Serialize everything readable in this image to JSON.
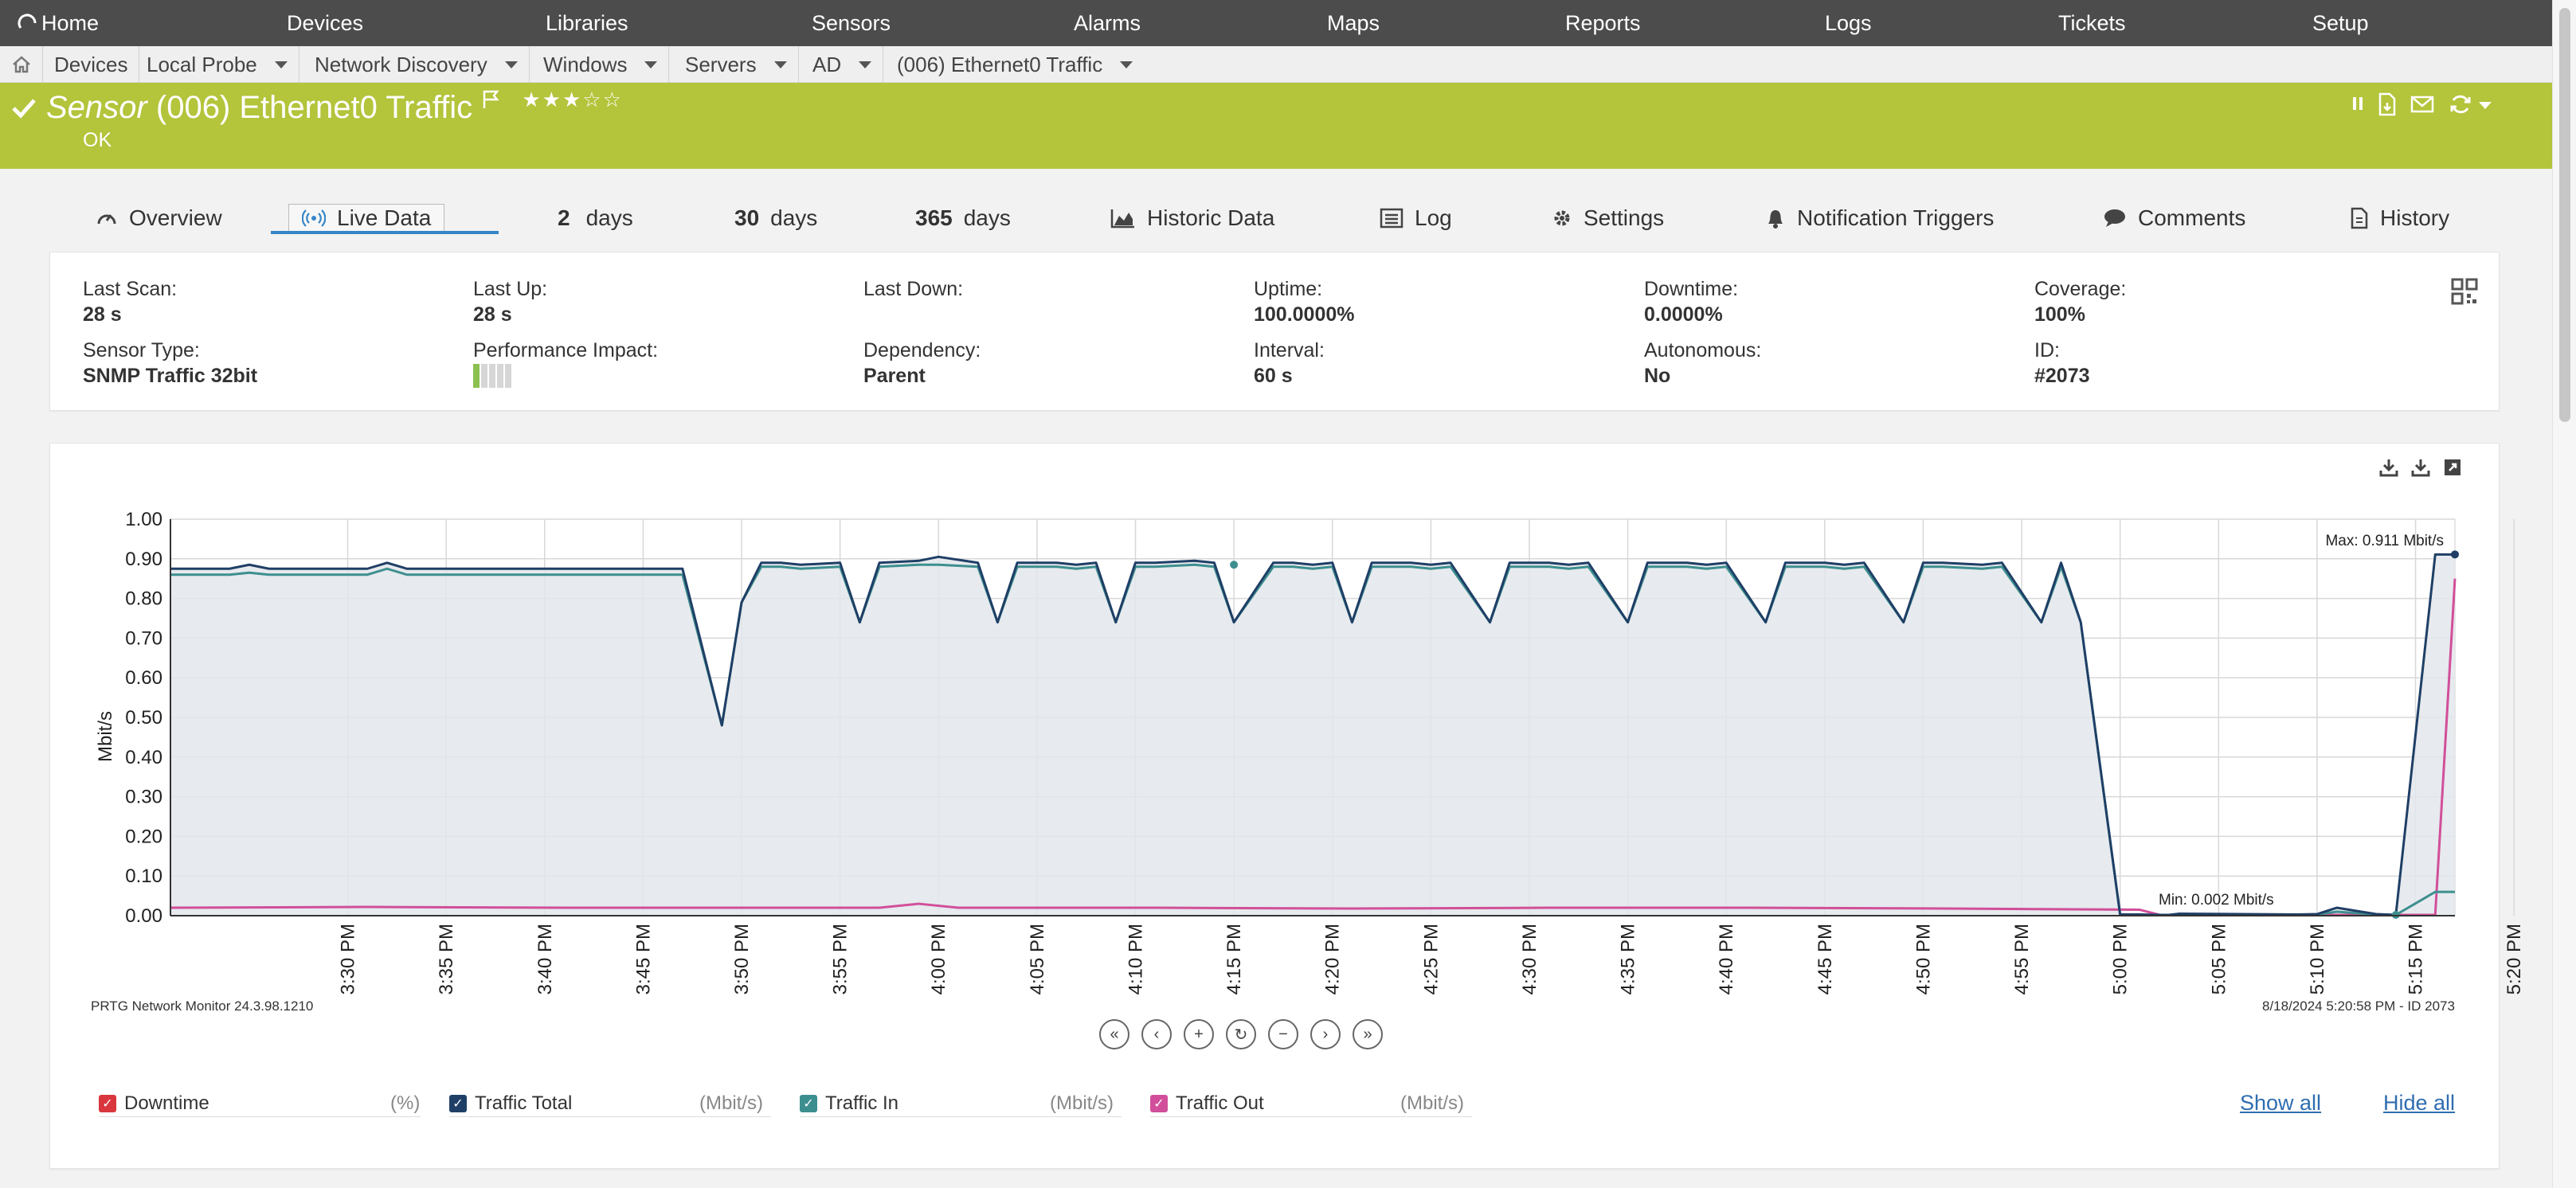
{
  "nav": {
    "items": [
      "Home",
      "Devices",
      "Libraries",
      "Sensors",
      "Alarms",
      "Maps",
      "Reports",
      "Logs",
      "Tickets",
      "Setup"
    ]
  },
  "breadcrumb": {
    "items": [
      "Devices",
      "Local Probe",
      "Network Discovery",
      "Windows",
      "Servers",
      "AD",
      "(006) Ethernet0 Traffic"
    ]
  },
  "sensor": {
    "kind": "Sensor",
    "name": "(006) Ethernet0 Traffic",
    "status": "OK",
    "stars": "★★★☆☆",
    "color": "#b4c43b"
  },
  "tabs": {
    "overview": "Overview",
    "live": "Live Data",
    "d2_num": "2",
    "d2_unit": "days",
    "d30_num": "30",
    "d30_unit": "days",
    "d365_num": "365",
    "d365_unit": "days",
    "historic": "Historic Data",
    "log": "Log",
    "settings": "Settings",
    "triggers": "Notification Triggers",
    "comments": "Comments",
    "history": "History"
  },
  "info": {
    "last_scan_label": "Last Scan:",
    "last_scan": "28 s",
    "last_up_label": "Last Up:",
    "last_up": "28 s",
    "last_down_label": "Last Down:",
    "last_down": "",
    "uptime_label": "Uptime:",
    "uptime": "100.0000%",
    "downtime_label": "Downtime:",
    "downtime": "0.0000%",
    "coverage_label": "Coverage:",
    "coverage": "100%",
    "sensor_type_label": "Sensor Type:",
    "sensor_type": "SNMP Traffic 32bit",
    "perf_label": "Performance Impact:",
    "perf_level": 0.2,
    "dependency_label": "Dependency:",
    "dependency": "Parent",
    "interval_label": "Interval:",
    "interval": "60 s",
    "autonomous_label": "Autonomous:",
    "autonomous": "No",
    "id_label": "ID:",
    "id": "#2073"
  },
  "chart_footer": {
    "left": "PRTG Network Monitor 24.3.98.1210",
    "right": "8/18/2024 5:20:58 PM - ID 2073"
  },
  "legend": {
    "downtime": "Downtime",
    "downtime_unit": "(%)",
    "total": "Traffic Total",
    "total_unit": "(Mbit/s)",
    "in": "Traffic In",
    "in_unit": "(Mbit/s)",
    "out": "Traffic Out",
    "out_unit": "(Mbit/s)",
    "show_all": "Show all",
    "hide_all": "Hide all"
  },
  "chart_data": {
    "type": "line",
    "ylabel": "Mbit/s",
    "ylim": [
      0,
      1.0
    ],
    "yticks": [
      "1.00",
      "0.90",
      "0.80",
      "0.70",
      "0.60",
      "0.50",
      "0.40",
      "0.30",
      "0.20",
      "0.10",
      "0.00"
    ],
    "xlim": [
      0,
      116
    ],
    "xticks": [
      "3:30 PM",
      "3:35 PM",
      "3:40 PM",
      "3:45 PM",
      "3:50 PM",
      "3:55 PM",
      "4:00 PM",
      "4:05 PM",
      "4:10 PM",
      "4:15 PM",
      "4:20 PM",
      "4:25 PM",
      "4:30 PM",
      "4:35 PM",
      "4:40 PM",
      "4:45 PM",
      "4:50 PM",
      "4:55 PM",
      "5:00 PM",
      "5:05 PM",
      "5:10 PM",
      "5:15 PM",
      "5:20 PM"
    ],
    "xtick_minutes": [
      9,
      14,
      19,
      24,
      29,
      34,
      39,
      44,
      49,
      54,
      59,
      64,
      69,
      74,
      79,
      84,
      89,
      94,
      99,
      104,
      109,
      114,
      119
    ],
    "grid": true,
    "max_label": "Max: 0.911 Mbit/s",
    "min_label": "Min: 0.002 Mbit/s",
    "colors": {
      "total": "#1f3f66",
      "in": "#3d8f8f",
      "out": "#d14f9a",
      "downtime": "#d9363e",
      "fill": "#e3e6eb"
    },
    "series": [
      {
        "name": "Traffic Total",
        "x": [
          0,
          3,
          4,
          5,
          10,
          11,
          12,
          26,
          28,
          29,
          30,
          31,
          32,
          34,
          35,
          36,
          38,
          39,
          41,
          42,
          43,
          45,
          46,
          47,
          48,
          49,
          50,
          52,
          53,
          54,
          56,
          57,
          58,
          59,
          60,
          61,
          63,
          64,
          65,
          67,
          68,
          70,
          71,
          72,
          74,
          75,
          77,
          78,
          79,
          81,
          82,
          84,
          85,
          86,
          88,
          89,
          90,
          92,
          93,
          95,
          96,
          97,
          99,
          100,
          101,
          101.5,
          102,
          108,
          109,
          110,
          112,
          113,
          115,
          116
        ],
        "values": [
          0.875,
          0.875,
          0.885,
          0.875,
          0.875,
          0.89,
          0.875,
          0.875,
          0.48,
          0.79,
          0.89,
          0.89,
          0.885,
          0.89,
          0.74,
          0.89,
          0.895,
          0.905,
          0.89,
          0.74,
          0.89,
          0.89,
          0.885,
          0.89,
          0.74,
          0.89,
          0.89,
          0.895,
          0.89,
          0.74,
          0.89,
          0.89,
          0.885,
          0.89,
          0.74,
          0.89,
          0.89,
          0.885,
          0.89,
          0.74,
          0.89,
          0.89,
          0.885,
          0.89,
          0.74,
          0.89,
          0.89,
          0.885,
          0.89,
          0.74,
          0.89,
          0.89,
          0.885,
          0.89,
          0.74,
          0.89,
          0.89,
          0.885,
          0.89,
          0.74,
          0.89,
          0.74,
          0.003,
          0.003,
          0.002,
          0.002,
          0.005,
          0.003,
          0.004,
          0.02,
          0.004,
          0.002,
          0.911,
          0.911
        ]
      },
      {
        "name": "Traffic In",
        "x": [
          0,
          3,
          4,
          5,
          10,
          11,
          12,
          26,
          28,
          29,
          30,
          31,
          32,
          34,
          35,
          36,
          38,
          39,
          41,
          42,
          43,
          45,
          46,
          47,
          48,
          49,
          50,
          52,
          53,
          54,
          56,
          57,
          58,
          59,
          60,
          61,
          63,
          64,
          65,
          67,
          68,
          70,
          71,
          72,
          74,
          75,
          77,
          78,
          79,
          81,
          82,
          84,
          85,
          86,
          88,
          89,
          90,
          92,
          93,
          95,
          96,
          97,
          99,
          100,
          101,
          101.5,
          102,
          108,
          109,
          110,
          112,
          113,
          115,
          116
        ],
        "values": [
          0.86,
          0.86,
          0.865,
          0.86,
          0.86,
          0.875,
          0.86,
          0.86,
          0.48,
          0.79,
          0.88,
          0.88,
          0.875,
          0.88,
          0.74,
          0.88,
          0.885,
          0.885,
          0.88,
          0.74,
          0.88,
          0.88,
          0.875,
          0.88,
          0.74,
          0.88,
          0.88,
          0.885,
          0.88,
          0.74,
          0.88,
          0.88,
          0.875,
          0.88,
          0.74,
          0.88,
          0.88,
          0.875,
          0.88,
          0.74,
          0.88,
          0.88,
          0.875,
          0.88,
          0.74,
          0.88,
          0.88,
          0.875,
          0.88,
          0.74,
          0.88,
          0.88,
          0.875,
          0.88,
          0.74,
          0.88,
          0.88,
          0.875,
          0.88,
          0.74,
          0.88,
          0.74,
          0.002,
          0.002,
          0.002,
          0.002,
          0.004,
          0.002,
          0.003,
          0.01,
          0.003,
          0.002,
          0.06,
          0.06
        ]
      },
      {
        "name": "Traffic Out",
        "x": [
          0,
          10,
          20,
          30,
          36,
          38,
          40,
          50,
          60,
          70,
          80,
          90,
          100,
          101,
          110,
          114,
          115,
          116
        ],
        "values": [
          0.02,
          0.022,
          0.02,
          0.02,
          0.02,
          0.03,
          0.02,
          0.02,
          0.018,
          0.02,
          0.02,
          0.018,
          0.015,
          0.002,
          0.002,
          0.002,
          0.002,
          0.85
        ]
      }
    ]
  }
}
